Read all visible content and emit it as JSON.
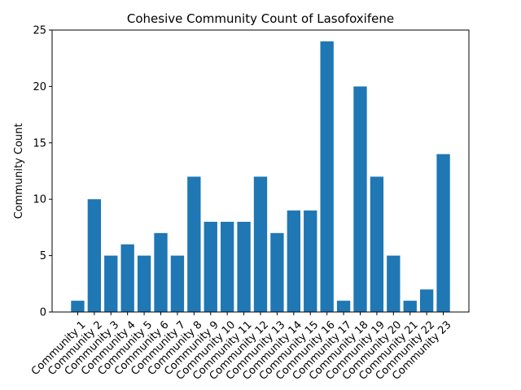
{
  "chart_data": {
    "type": "bar",
    "title": "Cohesive Community Count of Lasofoxifene",
    "xlabel": "",
    "ylabel": "Community Count",
    "categories": [
      "Community 1",
      "Community 2",
      "Community 3",
      "Community 4",
      "Community 5",
      "Community 6",
      "Community 7",
      "Community 8",
      "Community 9",
      "Community 10",
      "Community 11",
      "Community 12",
      "Community 13",
      "Community 14",
      "Community 15",
      "Community 16",
      "Community 17",
      "Community 18",
      "Community 19",
      "Community 20",
      "Community 21",
      "Community 22",
      "Community 23"
    ],
    "values": [
      1,
      10,
      5,
      6,
      5,
      7,
      5,
      12,
      8,
      8,
      8,
      12,
      7,
      9,
      9,
      24,
      1,
      20,
      12,
      5,
      1,
      2,
      14
    ],
    "ylim": [
      0,
      25
    ],
    "yticks": [
      0,
      5,
      10,
      15,
      20,
      25
    ],
    "grid": false,
    "bar_color": "#1f77b4"
  }
}
